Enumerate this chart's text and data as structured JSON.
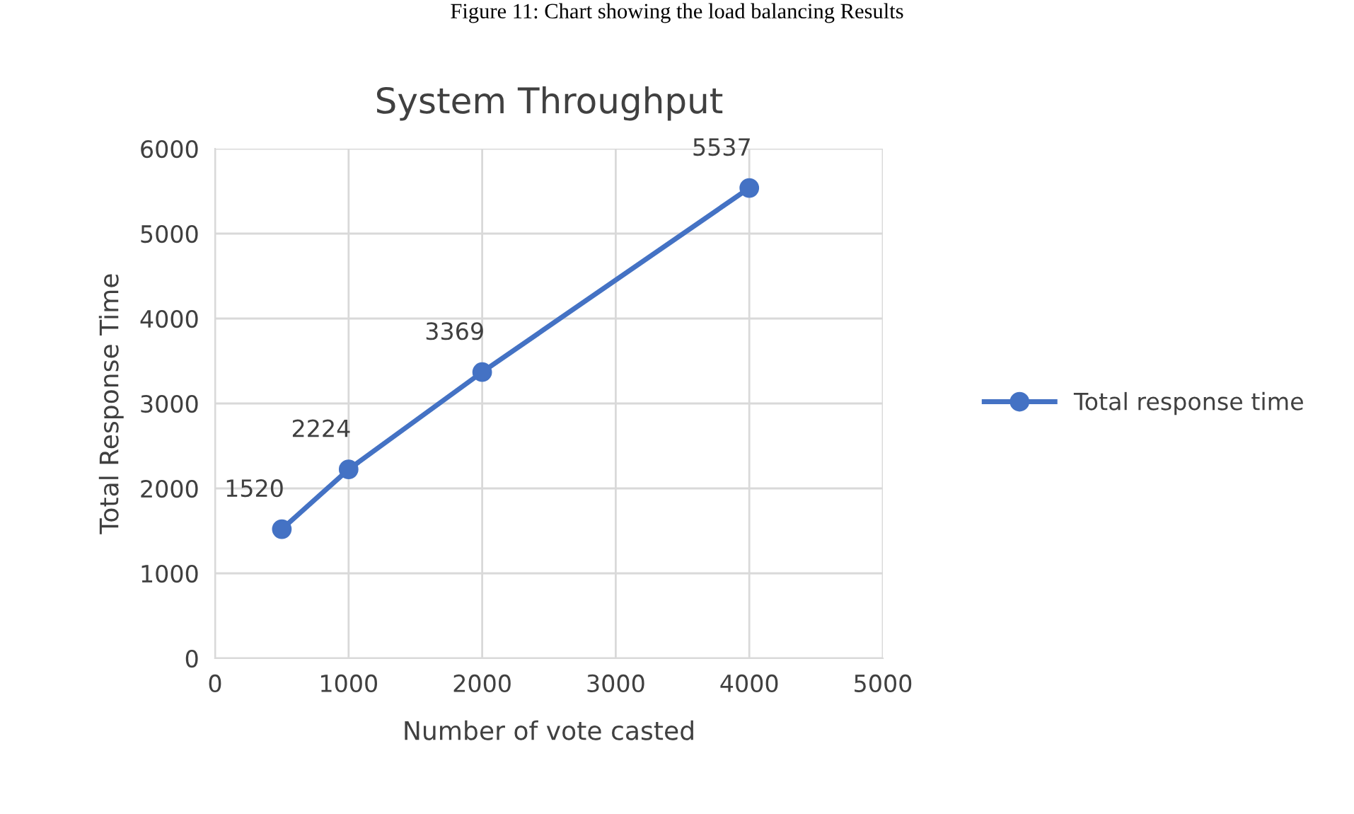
{
  "chart_data": {
    "type": "line",
    "title": "System Throughput",
    "xlabel": "Number of vote casted",
    "ylabel": "Total Response Time",
    "x": [
      500,
      1000,
      2000,
      4000
    ],
    "series": [
      {
        "name": "Total response time",
        "color": "#4472c4",
        "values": [
          1520,
          2224,
          3369,
          5537
        ]
      }
    ],
    "xlim": [
      0,
      5000
    ],
    "xticks": [
      0,
      1000,
      2000,
      3000,
      4000,
      5000
    ],
    "ylim": [
      0,
      6000
    ],
    "yticks": [
      0,
      1000,
      2000,
      3000,
      4000,
      5000,
      6000
    ],
    "grid": true,
    "legend": "right",
    "marker": "circle",
    "line_style": "solid",
    "data_labels": true,
    "annotations": [
      "Figure 11: Chart showing the load balancing Results"
    ]
  }
}
